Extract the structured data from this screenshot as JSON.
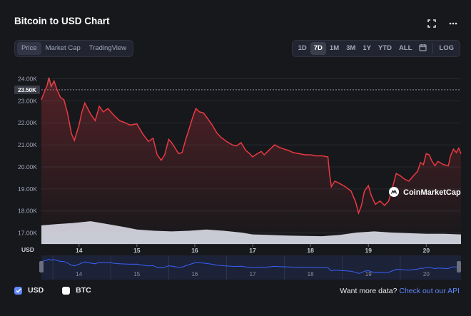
{
  "header": {
    "title": "Bitcoin to USD Chart",
    "fullscreen_icon": "fullscreen-icon",
    "more_icon": "more-horizontal-icon"
  },
  "view_tabs": [
    {
      "label": "Price",
      "active": true
    },
    {
      "label": "Market Cap",
      "active": false
    },
    {
      "label": "TradingView",
      "active": false
    }
  ],
  "range_tabs": [
    {
      "label": "1D",
      "active": false
    },
    {
      "label": "7D",
      "active": true
    },
    {
      "label": "1M",
      "active": false
    },
    {
      "label": "3M",
      "active": false
    },
    {
      "label": "1Y",
      "active": false
    },
    {
      "label": "YTD",
      "active": false
    },
    {
      "label": "ALL",
      "active": false
    }
  ],
  "calendar_icon": "calendar-icon",
  "log_label": "LOG",
  "watermark": "CoinMarketCap",
  "colors": {
    "line_up": "#16c784",
    "line_down": "#ea3943",
    "volume": "#d8dce6",
    "navigator_line": "#3861fb",
    "accent": "#6188ff"
  },
  "chart_data": {
    "type": "line",
    "currency_label": "USD",
    "y_ticks": [
      "24.00K",
      "23.00K",
      "22.00K",
      "21.00K",
      "20.00K",
      "19.00K",
      "18.00K",
      "17.00K"
    ],
    "y_tick_values": [
      24000,
      23000,
      22000,
      21000,
      20000,
      19000,
      18000,
      17000
    ],
    "ylim": [
      16500,
      24500
    ],
    "x_ticks": [
      "14",
      "15",
      "16",
      "17",
      "18",
      "19",
      "20"
    ],
    "x_tick_values": [
      14,
      15,
      16,
      17,
      18,
      19,
      20
    ],
    "xlim": [
      13.35,
      20.6
    ],
    "reference_line": {
      "value": 23500,
      "label": "23.50K"
    },
    "price": [
      [
        13.35,
        23050
      ],
      [
        13.4,
        23400
      ],
      [
        13.45,
        23700
      ],
      [
        13.48,
        24050
      ],
      [
        13.52,
        23650
      ],
      [
        13.57,
        23900
      ],
      [
        13.62,
        23500
      ],
      [
        13.68,
        23150
      ],
      [
        13.74,
        23050
      ],
      [
        13.8,
        22450
      ],
      [
        13.87,
        21500
      ],
      [
        13.92,
        21200
      ],
      [
        14.0,
        21900
      ],
      [
        14.05,
        22500
      ],
      [
        14.1,
        22900
      ],
      [
        14.15,
        22650
      ],
      [
        14.2,
        22400
      ],
      [
        14.28,
        22100
      ],
      [
        14.35,
        22750
      ],
      [
        14.42,
        22500
      ],
      [
        14.5,
        22650
      ],
      [
        14.6,
        22350
      ],
      [
        14.7,
        22100
      ],
      [
        14.8,
        22000
      ],
      [
        14.88,
        21900
      ],
      [
        15.0,
        21950
      ],
      [
        15.1,
        21500
      ],
      [
        15.2,
        21150
      ],
      [
        15.28,
        21300
      ],
      [
        15.35,
        20550
      ],
      [
        15.42,
        20300
      ],
      [
        15.48,
        20550
      ],
      [
        15.55,
        21250
      ],
      [
        15.6,
        21100
      ],
      [
        15.65,
        20900
      ],
      [
        15.72,
        20600
      ],
      [
        15.78,
        20650
      ],
      [
        15.85,
        21300
      ],
      [
        15.9,
        21700
      ],
      [
        15.97,
        22300
      ],
      [
        16.02,
        22650
      ],
      [
        16.08,
        22500
      ],
      [
        16.15,
        22450
      ],
      [
        16.22,
        22200
      ],
      [
        16.3,
        21900
      ],
      [
        16.38,
        21550
      ],
      [
        16.45,
        21350
      ],
      [
        16.55,
        21150
      ],
      [
        16.65,
        21000
      ],
      [
        16.72,
        20950
      ],
      [
        16.8,
        21100
      ],
      [
        16.88,
        20750
      ],
      [
        16.95,
        20600
      ],
      [
        17.0,
        20450
      ],
      [
        17.08,
        20600
      ],
      [
        17.15,
        20700
      ],
      [
        17.2,
        20550
      ],
      [
        17.3,
        20800
      ],
      [
        17.38,
        21000
      ],
      [
        17.45,
        20900
      ],
      [
        17.55,
        20800
      ],
      [
        17.62,
        20750
      ],
      [
        17.7,
        20650
      ],
      [
        17.8,
        20600
      ],
      [
        17.9,
        20550
      ],
      [
        18.0,
        20550
      ],
      [
        18.1,
        20500
      ],
      [
        18.2,
        20500
      ],
      [
        18.3,
        20450
      ],
      [
        18.33,
        19650
      ],
      [
        18.36,
        19100
      ],
      [
        18.42,
        19350
      ],
      [
        18.5,
        19250
      ],
      [
        18.6,
        19100
      ],
      [
        18.7,
        18900
      ],
      [
        18.78,
        18400
      ],
      [
        18.83,
        17900
      ],
      [
        18.88,
        18250
      ],
      [
        18.93,
        18900
      ],
      [
        19.0,
        19150
      ],
      [
        19.05,
        18700
      ],
      [
        19.12,
        18300
      ],
      [
        19.2,
        18450
      ],
      [
        19.28,
        18250
      ],
      [
        19.35,
        18450
      ],
      [
        19.42,
        19100
      ],
      [
        19.48,
        19700
      ],
      [
        19.55,
        19600
      ],
      [
        19.62,
        19450
      ],
      [
        19.7,
        19350
      ],
      [
        19.78,
        19600
      ],
      [
        19.85,
        19800
      ],
      [
        19.9,
        20200
      ],
      [
        19.95,
        20100
      ],
      [
        20.0,
        20600
      ],
      [
        20.05,
        20550
      ],
      [
        20.1,
        20250
      ],
      [
        20.15,
        20050
      ],
      [
        20.2,
        20250
      ],
      [
        20.3,
        20100
      ],
      [
        20.38,
        20050
      ],
      [
        20.42,
        20500
      ],
      [
        20.47,
        20800
      ],
      [
        20.52,
        20650
      ],
      [
        20.56,
        20850
      ],
      [
        20.6,
        20600
      ]
    ],
    "volume": [
      [
        13.35,
        0.62
      ],
      [
        13.6,
        0.66
      ],
      [
        13.9,
        0.7
      ],
      [
        14.2,
        0.76
      ],
      [
        14.5,
        0.66
      ],
      [
        14.8,
        0.56
      ],
      [
        15.0,
        0.48
      ],
      [
        15.3,
        0.44
      ],
      [
        15.6,
        0.42
      ],
      [
        15.9,
        0.44
      ],
      [
        16.2,
        0.48
      ],
      [
        16.5,
        0.44
      ],
      [
        16.8,
        0.38
      ],
      [
        17.0,
        0.32
      ],
      [
        17.3,
        0.3
      ],
      [
        17.6,
        0.28
      ],
      [
        17.9,
        0.27
      ],
      [
        18.2,
        0.26
      ],
      [
        18.5,
        0.3
      ],
      [
        18.8,
        0.38
      ],
      [
        19.1,
        0.42
      ],
      [
        19.4,
        0.38
      ],
      [
        19.7,
        0.36
      ],
      [
        20.0,
        0.34
      ],
      [
        20.3,
        0.34
      ],
      [
        20.6,
        0.32
      ]
    ],
    "navigator": {
      "x_ticks": [
        "14",
        "15",
        "16",
        "17",
        "18",
        "19",
        "20"
      ]
    }
  },
  "legend": [
    {
      "label": "USD",
      "checked": true
    },
    {
      "label": "BTC",
      "checked": false
    }
  ],
  "footer": {
    "text": "Want more data?",
    "link": "Check out our API"
  }
}
